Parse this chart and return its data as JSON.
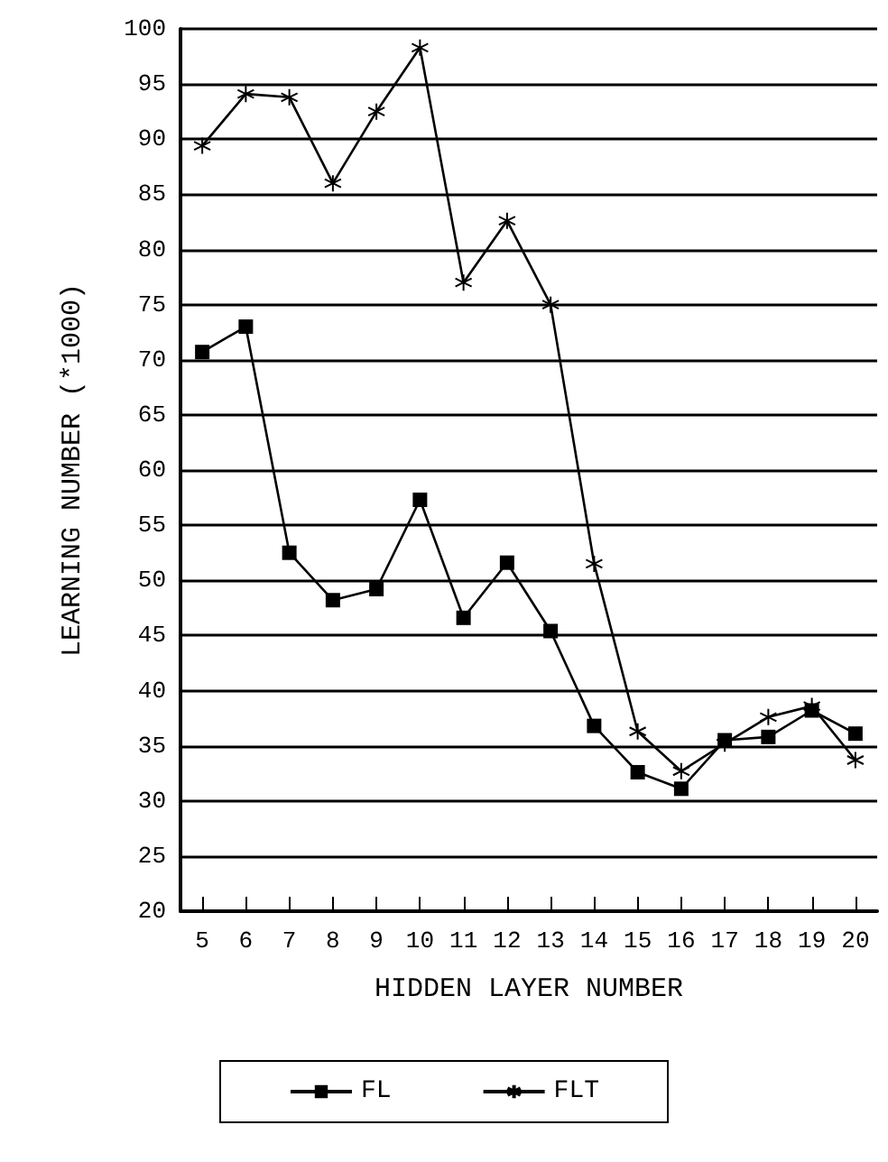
{
  "chart_data": {
    "type": "line",
    "xlabel": "HIDDEN LAYER NUMBER",
    "ylabel": "LEARNING NUMBER (*1000)",
    "categories": [
      "5",
      "6",
      "7",
      "8",
      "9",
      "10",
      "11",
      "12",
      "13",
      "14",
      "15",
      "16",
      "17",
      "18",
      "19",
      "20"
    ],
    "series": [
      {
        "name": "FL",
        "color": "#000000",
        "marker": "square",
        "values": [
          70.7,
          73,
          52.5,
          48.2,
          49.2,
          57.3,
          46.6,
          51.6,
          45.4,
          36.8,
          32.6,
          31.1,
          35.5,
          35.8,
          38.2,
          36.1
        ]
      },
      {
        "name": "FLT",
        "color": "#000000",
        "marker": "cross",
        "values": [
          89.4,
          94.1,
          93.8,
          86,
          92.5,
          98.3,
          77,
          82.6,
          75,
          51.5,
          36.3,
          32.7,
          35.2,
          37.6,
          38.6,
          33.7
        ]
      }
    ],
    "ylim": [
      20,
      100
    ],
    "yticks": [
      20,
      25,
      30,
      35,
      40,
      45,
      50,
      55,
      60,
      65,
      70,
      75,
      80,
      85,
      90,
      95,
      100
    ],
    "grid": "y",
    "legend": "bottom",
    "line_style": "solid"
  }
}
